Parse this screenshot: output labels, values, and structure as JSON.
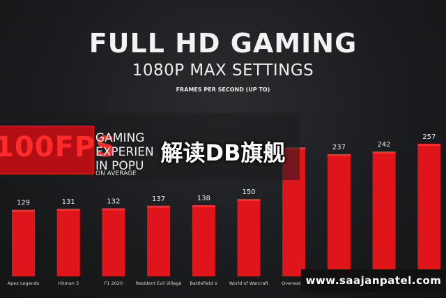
{
  "header": {
    "title": "FULL HD GAMING",
    "subtitle": "1080P MAX SETTINGS",
    "caption": "FRAMES PER SECOND (UP TO)"
  },
  "banner": {
    "fps": "100FPS",
    "line1": "GAMING",
    "line2": "EXPERIEN",
    "line3": "IN POPU",
    "avg": "ON AVERAGE"
  },
  "overlay_text": "解读DB旗舰",
  "watermark": "www.saajanpatel.com",
  "colors": {
    "bar": "#e0141b",
    "bar_top": "#ff2a2a",
    "background": "#1b1c1f"
  },
  "chart_data": {
    "type": "bar",
    "title": "FULL HD GAMING",
    "subtitle": "1080P MAX SETTINGS",
    "ylabel": "FRAMES PER SECOND (UP TO)",
    "categories": [
      "Apex Legends",
      "Hitman 3",
      "F1 2020",
      "Resident Evil Village",
      "Battlefield V",
      "World of Warcraft",
      "Overwatch",
      "",
      "",
      ""
    ],
    "values": [
      129,
      131,
      132,
      137,
      138,
      150,
      null,
      237,
      242,
      257
    ],
    "grid": false,
    "legend": "none"
  }
}
